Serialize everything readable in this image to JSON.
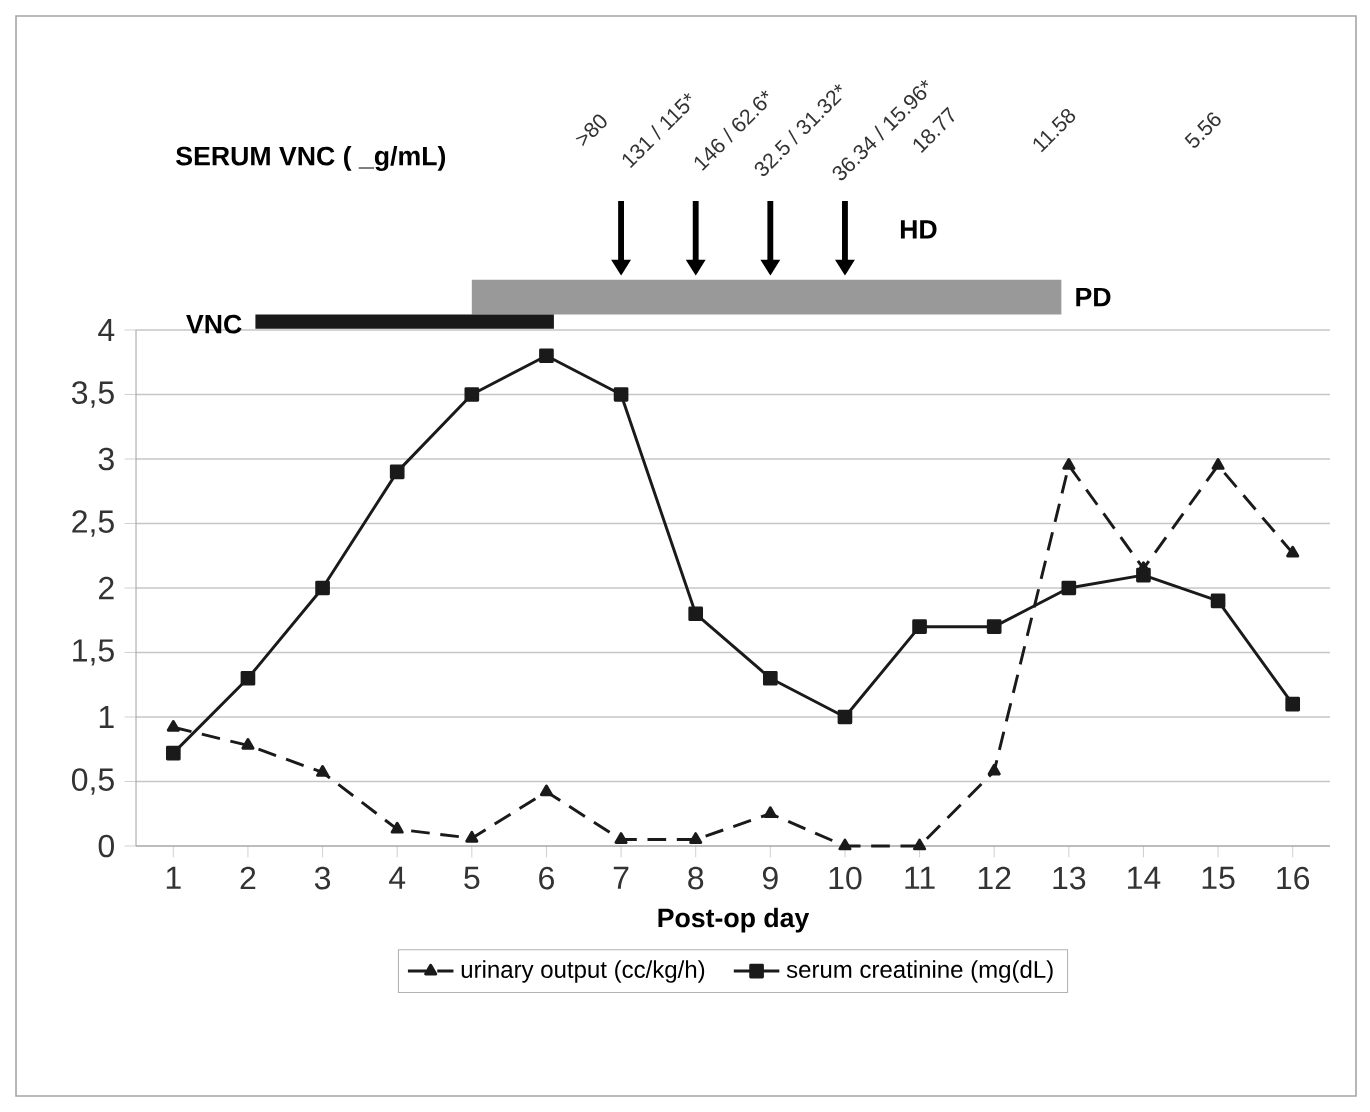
{
  "chart_data": {
    "type": "line",
    "xlabel": "Post-op day",
    "x": [
      1,
      2,
      3,
      4,
      5,
      6,
      7,
      8,
      9,
      10,
      11,
      12,
      13,
      14,
      15,
      16
    ],
    "xlim": [
      0.5,
      16.5
    ],
    "xticks": [
      1,
      2,
      3,
      4,
      5,
      6,
      7,
      8,
      9,
      10,
      11,
      12,
      13,
      14,
      15,
      16
    ],
    "ylim": [
      0,
      4
    ],
    "yticks": [
      0,
      {
        "value": 0.5,
        "label": "0,5"
      },
      1,
      {
        "value": 1.5,
        "label": "1,5"
      },
      2,
      {
        "value": 2.5,
        "label": "2,5"
      },
      3,
      {
        "value": 3.5,
        "label": "3,5"
      },
      4
    ],
    "grid": "y",
    "legend": "bottom",
    "series": [
      {
        "name": "urinary output (cc/kg/h)",
        "color": "#1a1a1a",
        "marker": "triangle",
        "line_style": "dashed",
        "values": [
          0.92,
          0.78,
          0.57,
          0.13,
          0.06,
          0.42,
          0.05,
          0.05,
          0.25,
          0,
          0,
          0.58,
          2.95,
          2.15,
          2.95,
          2.27
        ]
      },
      {
        "name": "serum creatinine (mg(dL)",
        "color": "#1a1a1a",
        "marker": "square",
        "line_style": "solid",
        "values": [
          0.72,
          1.3,
          2.0,
          2.9,
          3.5,
          3.8,
          3.5,
          1.8,
          1.3,
          1.0,
          1.7,
          1.7,
          2.0,
          2.1,
          1.9,
          1.1
        ]
      }
    ],
    "annotations": [
      "SERUM VNC ( _g/mL)",
      "HD",
      "VNC",
      "PD",
      ">80",
      "131 / 115*",
      "146 / 62.6*",
      "32.5 / 31.32*",
      "36.34 / 15.96*",
      "18.77",
      "11.58",
      "5.56"
    ]
  }
}
